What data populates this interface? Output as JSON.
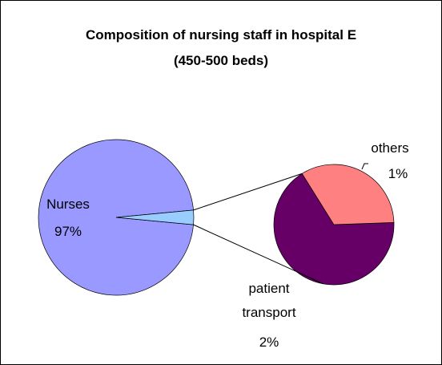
{
  "chart_data": {
    "type": "pie-of-pie",
    "title": "Composition of nursing staff in hospital E (450-500 beds)",
    "categories": [
      "Nurses",
      "patient transport",
      "others"
    ],
    "values": [
      97,
      2,
      1
    ],
    "value_labels": [
      "97%",
      "2%",
      "1%"
    ],
    "colors": [
      "#9999ff",
      "#660066",
      "#ff8080"
    ],
    "combined_color": "#99ccff"
  }
}
